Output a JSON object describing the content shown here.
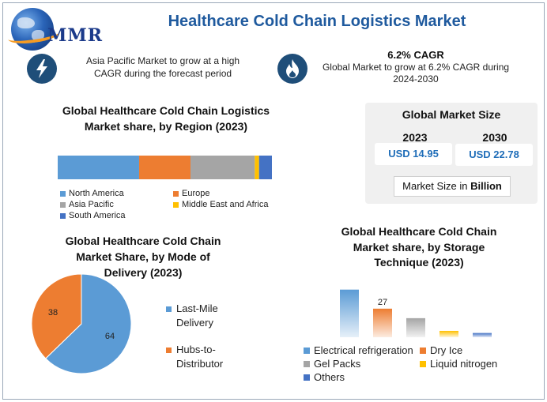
{
  "logo": {
    "text": "MMR"
  },
  "title": "Healthcare Cold Chain Logistics Market",
  "info_left": {
    "icon": "lightning-icon",
    "text_line1": "Asia Pacific Market to grow at a high",
    "text_line2": "CAGR during the forecast period"
  },
  "info_right": {
    "icon": "flame-icon",
    "cagr": "6.2% CAGR",
    "text_line1": "Global Market to grow at 6.2% CAGR during",
    "text_line2": "2024-2030"
  },
  "market_size": {
    "title": "Global Market Size",
    "years": [
      "2023",
      "2030"
    ],
    "values": [
      "USD 14.95",
      "USD 22.78"
    ],
    "unit_prefix": "Market Size in ",
    "unit_bold": "Billion"
  },
  "chart_data": [
    {
      "type": "bar",
      "orientation": "horizontal-stacked",
      "title_line1": "Global Healthcare Cold Chain Logistics",
      "title_line2": "Market share, by Region (2023)",
      "series": [
        {
          "name": "North America",
          "values": [
            38
          ],
          "color": "#5b9bd5"
        },
        {
          "name": "Europe",
          "values": [
            24
          ],
          "color": "#ed7d31"
        },
        {
          "name": "Asia Pacific",
          "values": [
            30
          ],
          "color": "#a5a5a5"
        },
        {
          "name": "Middle East and Africa",
          "values": [
            2
          ],
          "color": "#ffc000"
        },
        {
          "name": "South America",
          "values": [
            6
          ],
          "color": "#4472c4"
        }
      ],
      "legend_position": "bottom"
    },
    {
      "type": "pie",
      "title_line1": "Global Healthcare Cold Chain",
      "title_line2": "Market Share, by Mode of",
      "title_line3": "Delivery (2023)",
      "categories": [
        "Last-Mile Delivery",
        "Hubs-to-Distributor"
      ],
      "values": [
        64,
        38
      ],
      "colors": [
        "#5b9bd5",
        "#ed7d31"
      ],
      "legend_line1": [
        "Last-Mile",
        "Hubs-to-"
      ],
      "legend_line2": [
        "Delivery",
        "Distributor"
      ],
      "legend_position": "right"
    },
    {
      "type": "bar",
      "title_line1": "Global Healthcare Cold Chain",
      "title_line2": "Market share, by Storage",
      "title_line3": "Technique (2023)",
      "categories": [
        "Electrical refrigeration",
        "Dry Ice",
        "Gel Packs",
        "Liquid nitrogen",
        "Others"
      ],
      "values": [
        45,
        27,
        18,
        6,
        4
      ],
      "colors": [
        "#5b9bd5",
        "#ed7d31",
        "#a5a5a5",
        "#ffc000",
        "#4472c4"
      ],
      "data_labels": [
        null,
        "27",
        null,
        null,
        null
      ],
      "ylim": [
        0,
        50
      ],
      "legend_position": "bottom"
    }
  ]
}
